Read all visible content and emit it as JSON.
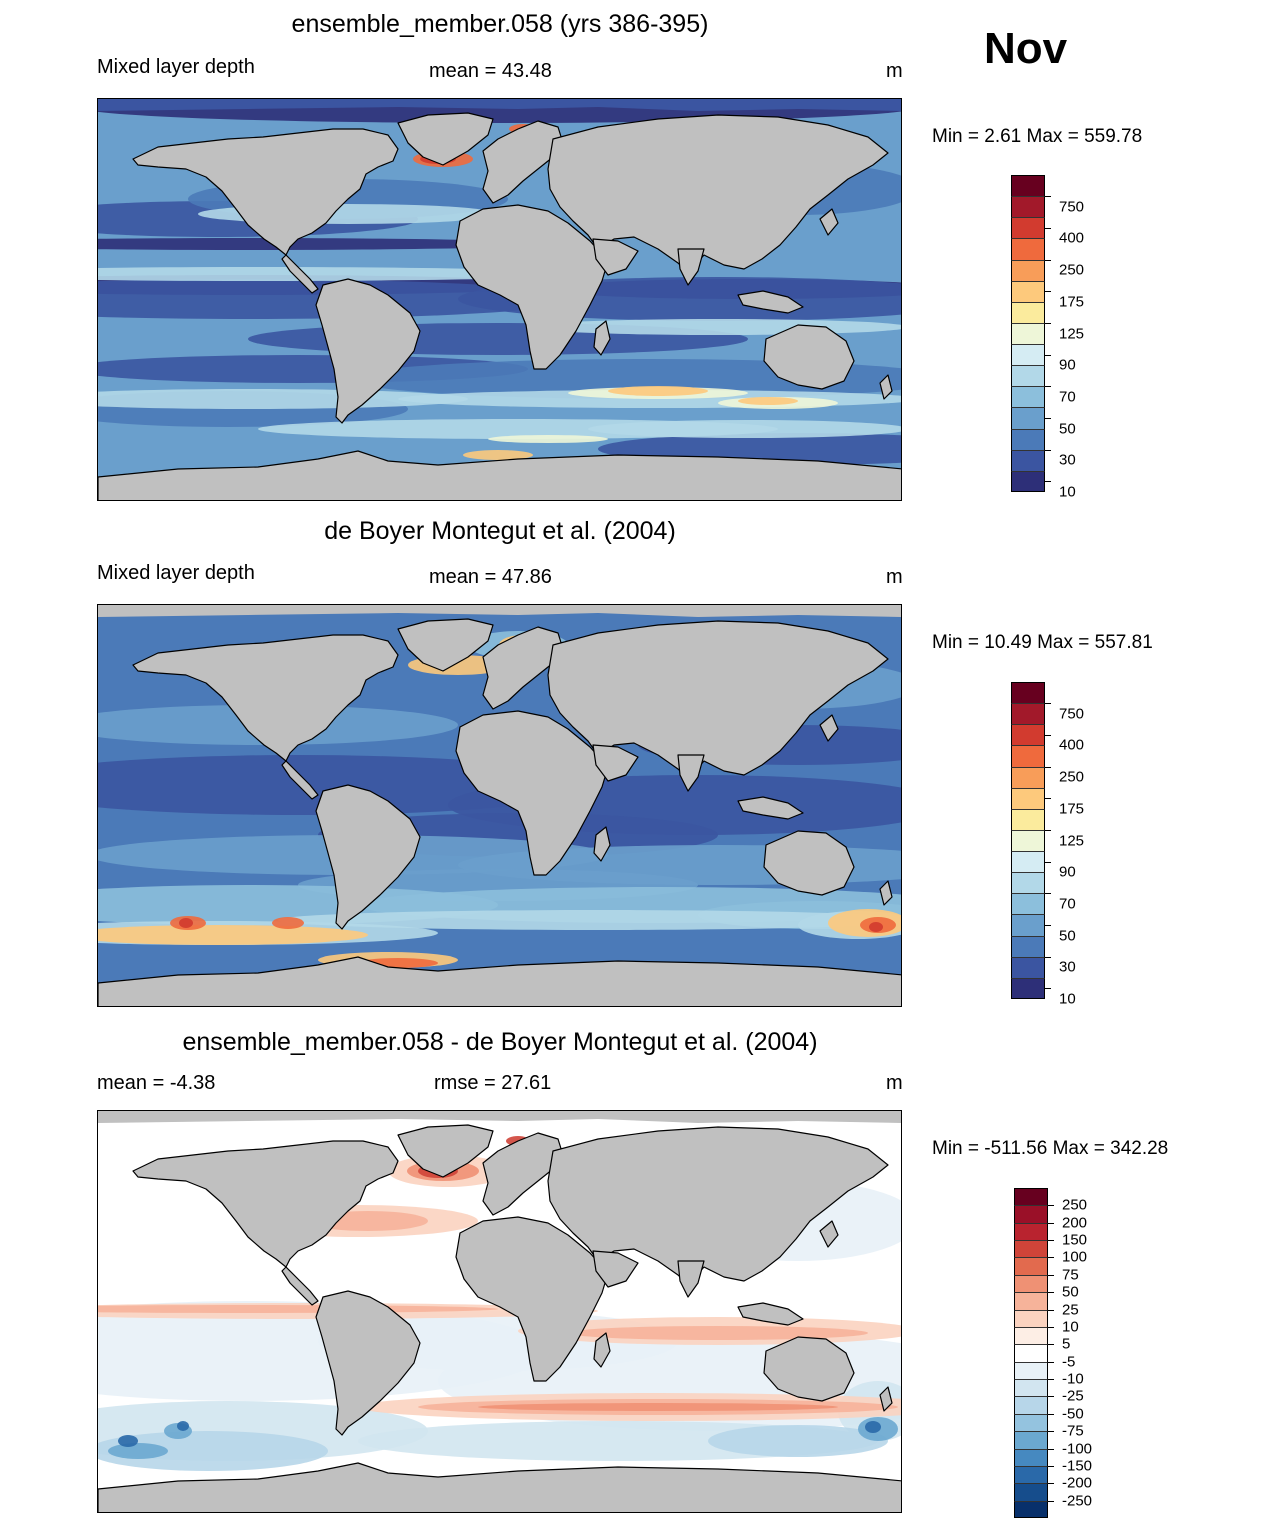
{
  "month": "Nov",
  "panels": [
    {
      "title": "ensemble_member.058 (yrs 386-395)",
      "left_label": "Mixed layer depth",
      "center_label": "mean =  43.48",
      "units": "m",
      "minmax": "Min =   2.61 Max = 559.78",
      "colorbar": {
        "labels": [
          "750",
          "400",
          "250",
          "175",
          "125",
          "90",
          "70",
          "50",
          "30",
          "10"
        ],
        "colors": [
          "#67001f",
          "#a2192a",
          "#d23b2f",
          "#ef6a3d",
          "#f89d59",
          "#fdc97c",
          "#fbeb9d",
          "#eef6d8",
          "#d5ecf3",
          "#b2d8e8",
          "#8cbfdc",
          "#6a9fcc",
          "#4b7ab8",
          "#3b55a1",
          "#2d2f78"
        ]
      },
      "regions": {
        "patches": "model"
      }
    },
    {
      "title": "de Boyer Montegut et al. (2004)",
      "left_label": "Mixed layer depth",
      "center_label": "mean =  47.86",
      "units": "m",
      "minmax": "Min =  10.49 Max = 557.81",
      "colorbar": {
        "labels": [
          "750",
          "400",
          "250",
          "175",
          "125",
          "90",
          "70",
          "50",
          "30",
          "10"
        ],
        "colors": [
          "#67001f",
          "#a2192a",
          "#d23b2f",
          "#ef6a3d",
          "#f89d59",
          "#fdc97c",
          "#fbeb9d",
          "#eef6d8",
          "#d5ecf3",
          "#b2d8e8",
          "#8cbfdc",
          "#6a9fcc",
          "#4b7ab8",
          "#3b55a1",
          "#2d2f78"
        ]
      },
      "regions": {
        "patches": "obs"
      }
    },
    {
      "title": "ensemble_member.058 - de Boyer Montegut et al. (2004)",
      "left_label": "mean =  -4.38",
      "center_label": "rmse =  27.61",
      "units": "m",
      "minmax": "Min = -511.56 Max = 342.28",
      "colorbar": {
        "labels": [
          "250",
          "200",
          "150",
          "100",
          "75",
          "50",
          "25",
          "10",
          "5",
          "-5",
          "-10",
          "-25",
          "-50",
          "-75",
          "-100",
          "-150",
          "-200",
          "-250"
        ],
        "colors": [
          "#67001f",
          "#9a1028",
          "#b9232f",
          "#cf4439",
          "#e26a4e",
          "#ef9174",
          "#f6b39a",
          "#fbd3c0",
          "#fdeee5",
          "#ffffff",
          "#e8f1f7",
          "#d2e5f0",
          "#b7d6e9",
          "#94c3df",
          "#6ba8d0",
          "#4689c0",
          "#2a69a9",
          "#164d8c",
          "#08306b"
        ]
      },
      "regions": {
        "patches": "diff"
      }
    }
  ]
}
